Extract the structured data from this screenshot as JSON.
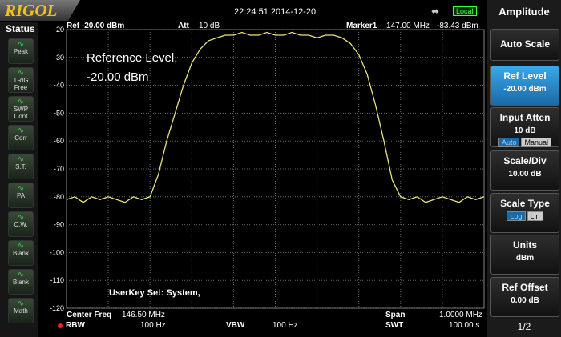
{
  "header": {
    "logo": "RIGOL",
    "time": "22:24:51 2014-12-20",
    "local": "Local"
  },
  "status": {
    "title": "Status",
    "buttons": [
      [
        "Peak"
      ],
      [
        "TRIG",
        "Free"
      ],
      [
        "SWP",
        "Cont"
      ],
      [
        "Corr"
      ],
      [
        "S.T."
      ],
      [
        "PA"
      ],
      [
        "C.W."
      ],
      [
        "Blank"
      ],
      [
        "Blank"
      ],
      [
        "Math"
      ]
    ]
  },
  "info": {
    "ref": "Ref -20.00 dBm",
    "att_label": "Att",
    "att": "10 dB",
    "marker_label": "Marker1",
    "marker_freq": "147.00 MHz",
    "marker_level": "-83.43 dBm"
  },
  "annotation": [
    "Reference Level,",
    "-20.00 dBm"
  ],
  "userkey": "UserKey Set:  System,",
  "footer": {
    "center_label": "Center Freq",
    "center": "146.50 MHz",
    "span_label": "Span",
    "span": "1.0000 MHz",
    "rbw_label": "RBW",
    "rbw": "100 Hz",
    "vbw_label": "VBW",
    "vbw": "100 Hz",
    "swt_label": "SWT",
    "swt": "100.00 s"
  },
  "menu": {
    "title": "Amplitude",
    "items": [
      {
        "label": "Auto Scale"
      },
      {
        "label": "Ref Level",
        "value": "-20.00 dBm"
      },
      {
        "label": "Input Atten",
        "value": "10 dB",
        "options": [
          "Auto",
          "Manual"
        ]
      },
      {
        "label": "Scale/Div",
        "value": "10.00 dB"
      },
      {
        "label": "Scale Type",
        "options": [
          "Log",
          "Lin"
        ]
      },
      {
        "label": "Units",
        "value": "dBm"
      },
      {
        "label": "Ref Offset",
        "value": "0.00 dB"
      }
    ],
    "page": "1/2"
  },
  "chart_data": {
    "type": "line",
    "color": "#e8e27a",
    "grid": true,
    "ylim": [
      -120,
      -20
    ],
    "yticks": [
      -20,
      -30,
      -40,
      -50,
      -60,
      -70,
      -80,
      -90,
      -100,
      -110,
      -120
    ],
    "values": [
      -81,
      -80,
      -82,
      -80,
      -81,
      -80,
      -81,
      -82,
      -80,
      -81,
      -80,
      -72,
      -60,
      -50,
      -40,
      -32,
      -27,
      -24,
      -23,
      -22,
      -22,
      -21,
      -22,
      -22,
      -21,
      -22,
      -22,
      -21,
      -22,
      -22,
      -23,
      -22,
      -22,
      -23,
      -25,
      -29,
      -36,
      -47,
      -60,
      -74,
      -80,
      -81,
      -80,
      -82,
      -81,
      -80,
      -81,
      -82,
      -80,
      -81,
      -80
    ]
  }
}
